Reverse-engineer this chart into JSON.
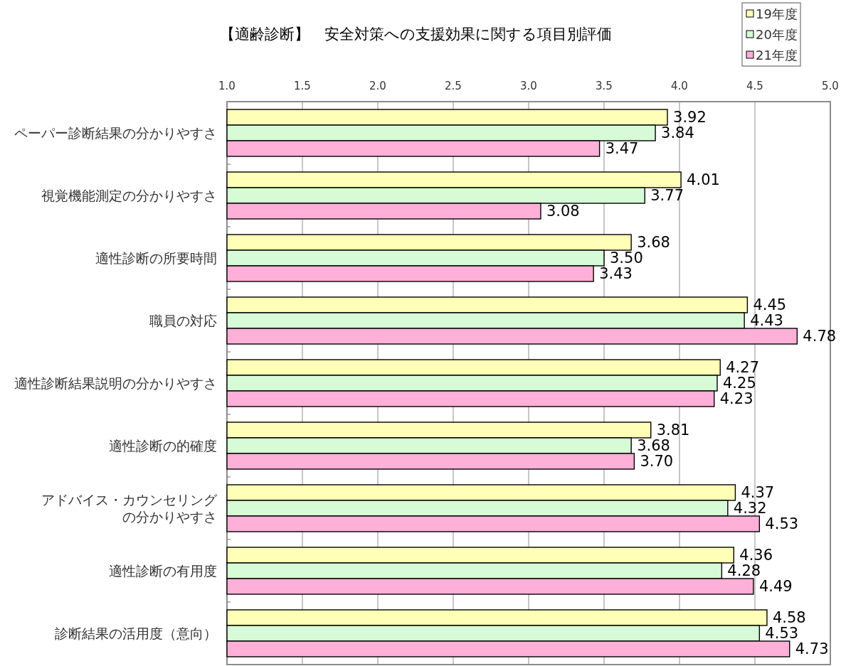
{
  "chart_data": {
    "type": "bar",
    "orientation": "horizontal",
    "title": "【適齢診断】　安全対策への支援効果に関する項目別評価",
    "categories": [
      "ペーパー診断結果の分かりやすさ",
      "視覚機能測定の分かりやすさ",
      "適性診断の所要時間",
      "職員の対応",
      "適性診断結果説明の分かりやすさ",
      "適性診断の的確度",
      "アドバイス・カウンセリングの分かりやすさ",
      "適性診断の有用度",
      "診断結果の活用度（意向）"
    ],
    "series": [
      {
        "name": "19年度",
        "color": "#ffffb8",
        "values": [
          3.92,
          4.01,
          3.68,
          4.45,
          4.27,
          3.81,
          4.37,
          4.36,
          4.58
        ],
        "value_labels": [
          "3.92",
          "4.01",
          "3.68",
          "4.45",
          "4.27",
          "3.81",
          "4.37",
          "4.36",
          "4.58"
        ]
      },
      {
        "name": "20年度",
        "color": "#d6fbd6",
        "values": [
          3.84,
          3.77,
          3.5,
          4.43,
          4.25,
          3.68,
          4.32,
          4.28,
          4.53
        ],
        "value_labels": [
          "3.84",
          "3.77",
          "3.50",
          "4.43",
          "4.25",
          "3.68",
          "4.32",
          "4.28",
          "4.53"
        ]
      },
      {
        "name": "21年度",
        "color": "#ffb0d8",
        "values": [
          3.47,
          3.08,
          3.43,
          4.78,
          4.23,
          3.7,
          4.53,
          4.49,
          4.73
        ],
        "value_labels": [
          "3.47",
          "3.08",
          "3.43",
          "4.78",
          "4.23",
          "3.70",
          "4.53",
          "4.49",
          "4.73"
        ]
      }
    ],
    "xlim": [
      1,
      5
    ],
    "xticks": [
      {
        "value": 1,
        "label": "1.0"
      },
      {
        "value": 1.5,
        "label": "1.5"
      },
      {
        "value": 2,
        "label": "2.0"
      },
      {
        "value": 2.5,
        "label": "2.5"
      },
      {
        "value": 3,
        "label": "3.0"
      },
      {
        "value": 3.5,
        "label": "3.5"
      },
      {
        "value": 4,
        "label": "4.0"
      },
      {
        "value": 4.5,
        "label": "4.5"
      },
      {
        "value": 5,
        "label": "5.0"
      }
    ],
    "grid": "x",
    "legend": "top right"
  }
}
